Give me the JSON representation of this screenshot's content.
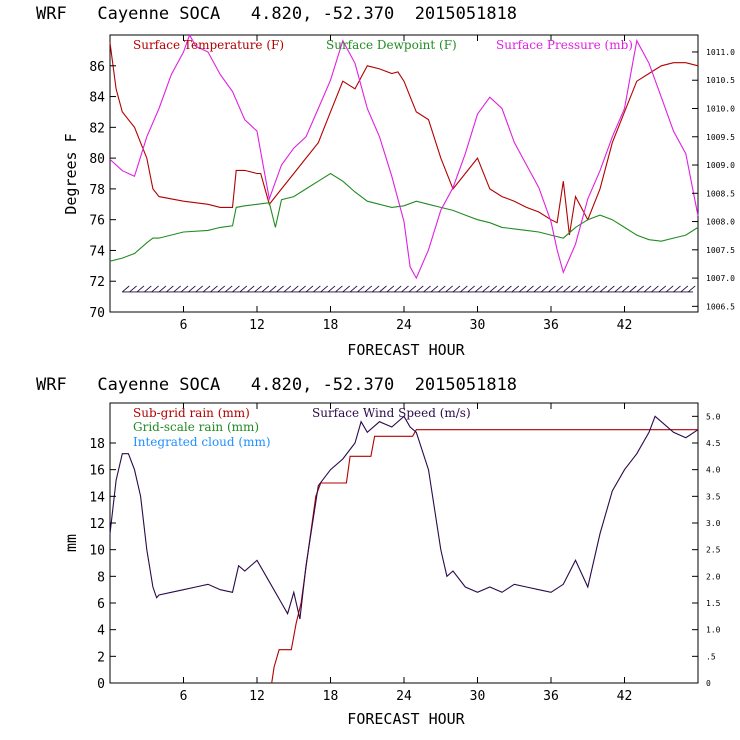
{
  "colors": {
    "temp": "#b30000",
    "dew": "#228b22",
    "pressure": "#e020e0",
    "subgrid": "#b30000",
    "gridscale": "#228b22",
    "cloud": "#1e90ff",
    "wind": "#2a0a4a",
    "barb": "#1a0a3a"
  },
  "chart_data": [
    {
      "type": "line",
      "title": "WRF   Cayenne SOCA   4.820, -52.370  2015051818",
      "xlabel": "FORECAST HOUR",
      "ylabel": "Degrees F",
      "xlim": [
        0,
        48
      ],
      "ylim": [
        70,
        88
      ],
      "y2lim": [
        1006.4,
        1011.3
      ],
      "xticks": [
        "6",
        "12",
        "18",
        "24",
        "30",
        "36",
        "42"
      ],
      "yticks": [
        "70",
        "72",
        "74",
        "76",
        "78",
        "80",
        "82",
        "84",
        "86"
      ],
      "y2ticks": [
        "1006.5",
        "1007.0",
        "1007.5",
        "1008.0",
        "1008.5",
        "1009.0",
        "1009.5",
        "1010.0",
        "1010.5",
        "1011.0"
      ],
      "legend": [
        "Surface Temperature (F)",
        "Surface Dewpoint (F)",
        "Surface Pressure (mb)"
      ],
      "wind_barbs_level": 71.5,
      "series": [
        {
          "name": "Surface Temperature (F)",
          "axis": "left",
          "x": [
            0,
            0.5,
            1,
            2,
            2.5,
            3,
            3.5,
            4,
            6,
            8,
            9,
            10,
            10.3,
            11,
            12,
            12.3,
            13,
            13.5,
            14,
            15,
            16,
            17,
            18,
            19,
            20,
            21,
            22,
            23,
            23.5,
            24,
            24.5,
            25,
            26,
            27,
            28,
            29,
            30,
            31,
            32,
            33,
            34,
            35,
            36,
            36.5,
            37,
            37.5,
            38,
            39,
            40,
            41,
            42,
            43,
            44,
            45,
            46,
            47,
            48
          ],
          "y": [
            87.5,
            84.5,
            83,
            82,
            81,
            80,
            78,
            77.5,
            77.2,
            77,
            76.8,
            76.8,
            79.2,
            79.2,
            79,
            79,
            77,
            77.5,
            78,
            79,
            80,
            81,
            83,
            85,
            84.5,
            86,
            85.8,
            85.5,
            85.6,
            85,
            84,
            83,
            82.5,
            80,
            78,
            79,
            80,
            78,
            77.5,
            77.2,
            76.8,
            76.5,
            76,
            75.8,
            78.5,
            75,
            77.5,
            76,
            78,
            81,
            83,
            85,
            85.5,
            86,
            86.2,
            86.2,
            86
          ],
          "labels": []
        },
        {
          "name": "Surface Dewpoint (F)",
          "axis": "left",
          "x": [
            0,
            1,
            2,
            3,
            3.5,
            4,
            6,
            8,
            9,
            10,
            10.3,
            11,
            12,
            13,
            13.5,
            14,
            15,
            16,
            17,
            18,
            19,
            20,
            21,
            22,
            23,
            24,
            25,
            26,
            27,
            28,
            29,
            30,
            31,
            32,
            33,
            34,
            35,
            36,
            37,
            38,
            39,
            40,
            41,
            42,
            43,
            44,
            45,
            46,
            47,
            48
          ],
          "y": [
            73.3,
            73.5,
            73.8,
            74.5,
            74.8,
            74.8,
            75.2,
            75.3,
            75.5,
            75.6,
            76.8,
            76.9,
            77,
            77.1,
            75.5,
            77.3,
            77.5,
            78,
            78.5,
            79,
            78.5,
            77.8,
            77.2,
            77,
            76.8,
            76.9,
            77.2,
            77,
            76.8,
            76.6,
            76.3,
            76,
            75.8,
            75.5,
            75.4,
            75.3,
            75.2,
            75,
            74.8,
            75.5,
            76,
            76.3,
            76,
            75.5,
            75,
            74.7,
            74.6,
            74.8,
            75,
            75.5
          ],
          "labels": []
        },
        {
          "name": "Surface Pressure (mb)",
          "axis": "right",
          "x": [
            0,
            1,
            2,
            3,
            4,
            5,
            6,
            6.5,
            7,
            8,
            9,
            10,
            11,
            12,
            12.5,
            13,
            14,
            15,
            16,
            17,
            18,
            19,
            20,
            21,
            22,
            23,
            24,
            24.5,
            25,
            26,
            27,
            28,
            29,
            30,
            31,
            32,
            33,
            34,
            35,
            36,
            36.5,
            37,
            38,
            39,
            40,
            41,
            42,
            42.5,
            43,
            44,
            45,
            46,
            47,
            48
          ],
          "y": [
            1009.1,
            1008.9,
            1008.8,
            1009.5,
            1010.0,
            1010.6,
            1011.0,
            1011.3,
            1011.1,
            1011.0,
            1010.6,
            1010.3,
            1009.8,
            1009.6,
            1009.0,
            1008.4,
            1009.0,
            1009.3,
            1009.5,
            1010.0,
            1010.5,
            1011.2,
            1010.8,
            1010.0,
            1009.5,
            1008.8,
            1008.0,
            1007.2,
            1007.0,
            1007.5,
            1008.2,
            1008.6,
            1009.2,
            1009.9,
            1010.2,
            1010.0,
            1009.4,
            1009.0,
            1008.6,
            1008.0,
            1007.5,
            1007.1,
            1007.6,
            1008.4,
            1008.9,
            1009.5,
            1010.0,
            1010.6,
            1011.2,
            1010.8,
            1010.2,
            1009.6,
            1009.2,
            1008.1
          ],
          "labels": []
        }
      ]
    },
    {
      "type": "line",
      "title": "WRF   Cayenne SOCA   4.820, -52.370  2015051818",
      "xlabel": "FORECAST HOUR",
      "ylabel": "mm",
      "xlim": [
        0,
        48
      ],
      "ylim": [
        0,
        21
      ],
      "y2lim": [
        0,
        5.25
      ],
      "xticks": [
        "6",
        "12",
        "18",
        "24",
        "30",
        "36",
        "42"
      ],
      "yticks": [
        "0",
        "2",
        "4",
        "6",
        "8",
        "10",
        "12",
        "14",
        "16",
        "18"
      ],
      "y2ticks": [
        "0",
        ".5",
        "1.0",
        "1.5",
        "2.0",
        "2.5",
        "3.0",
        "3.5",
        "4.0",
        "4.5",
        "5.0"
      ],
      "legend": [
        "Sub-grid rain (mm)",
        "Grid-scale rain (mm)",
        "Integrated cloud (mm)",
        "Surface Wind Speed (m/s)"
      ],
      "series": [
        {
          "name": "Sub-grid rain (mm)",
          "axis": "left",
          "x": [
            13.2,
            13.4,
            13.8,
            14.8,
            15.2,
            15.6,
            16.2,
            16.8,
            17.2,
            17.8,
            19.3,
            19.6,
            21.3,
            21.6,
            24.7,
            25.0,
            48
          ],
          "y": [
            0,
            1.2,
            2.5,
            2.5,
            4.5,
            6,
            10,
            14,
            15,
            15,
            15,
            17,
            17,
            18.5,
            18.5,
            19,
            19
          ],
          "labels": []
        },
        {
          "name": "Surface Wind Speed (m/s)",
          "axis": "right",
          "x": [
            0,
            0.5,
            1,
            1.5,
            2,
            2.5,
            3,
            3.5,
            3.8,
            4,
            5,
            6,
            7,
            8,
            9,
            10,
            10.5,
            11,
            12,
            13,
            14,
            14.5,
            15,
            15.5,
            16,
            17,
            18,
            19,
            20,
            20.5,
            21,
            22,
            23,
            24,
            24.5,
            25,
            26,
            27,
            27.5,
            28,
            29,
            30,
            31,
            32,
            33,
            34,
            35,
            36,
            37,
            38,
            39,
            40,
            41,
            42,
            43,
            44,
            44.5,
            45,
            46,
            47,
            48
          ],
          "y": [
            2.8,
            3.8,
            4.3,
            4.3,
            4.0,
            3.5,
            2.5,
            1.8,
            1.6,
            1.65,
            1.7,
            1.75,
            1.8,
            1.85,
            1.75,
            1.7,
            2.2,
            2.1,
            2.3,
            1.9,
            1.5,
            1.3,
            1.7,
            1.2,
            2.2,
            3.7,
            4.0,
            4.2,
            4.5,
            4.9,
            4.7,
            4.9,
            4.8,
            5.0,
            4.8,
            4.7,
            4.0,
            2.5,
            2.0,
            2.1,
            1.8,
            1.7,
            1.8,
            1.7,
            1.85,
            1.8,
            1.75,
            1.7,
            1.85,
            2.3,
            1.8,
            2.8,
            3.6,
            4.0,
            4.3,
            4.7,
            5.0,
            4.9,
            4.7,
            4.6,
            4.75
          ],
          "labels": []
        }
      ]
    }
  ]
}
